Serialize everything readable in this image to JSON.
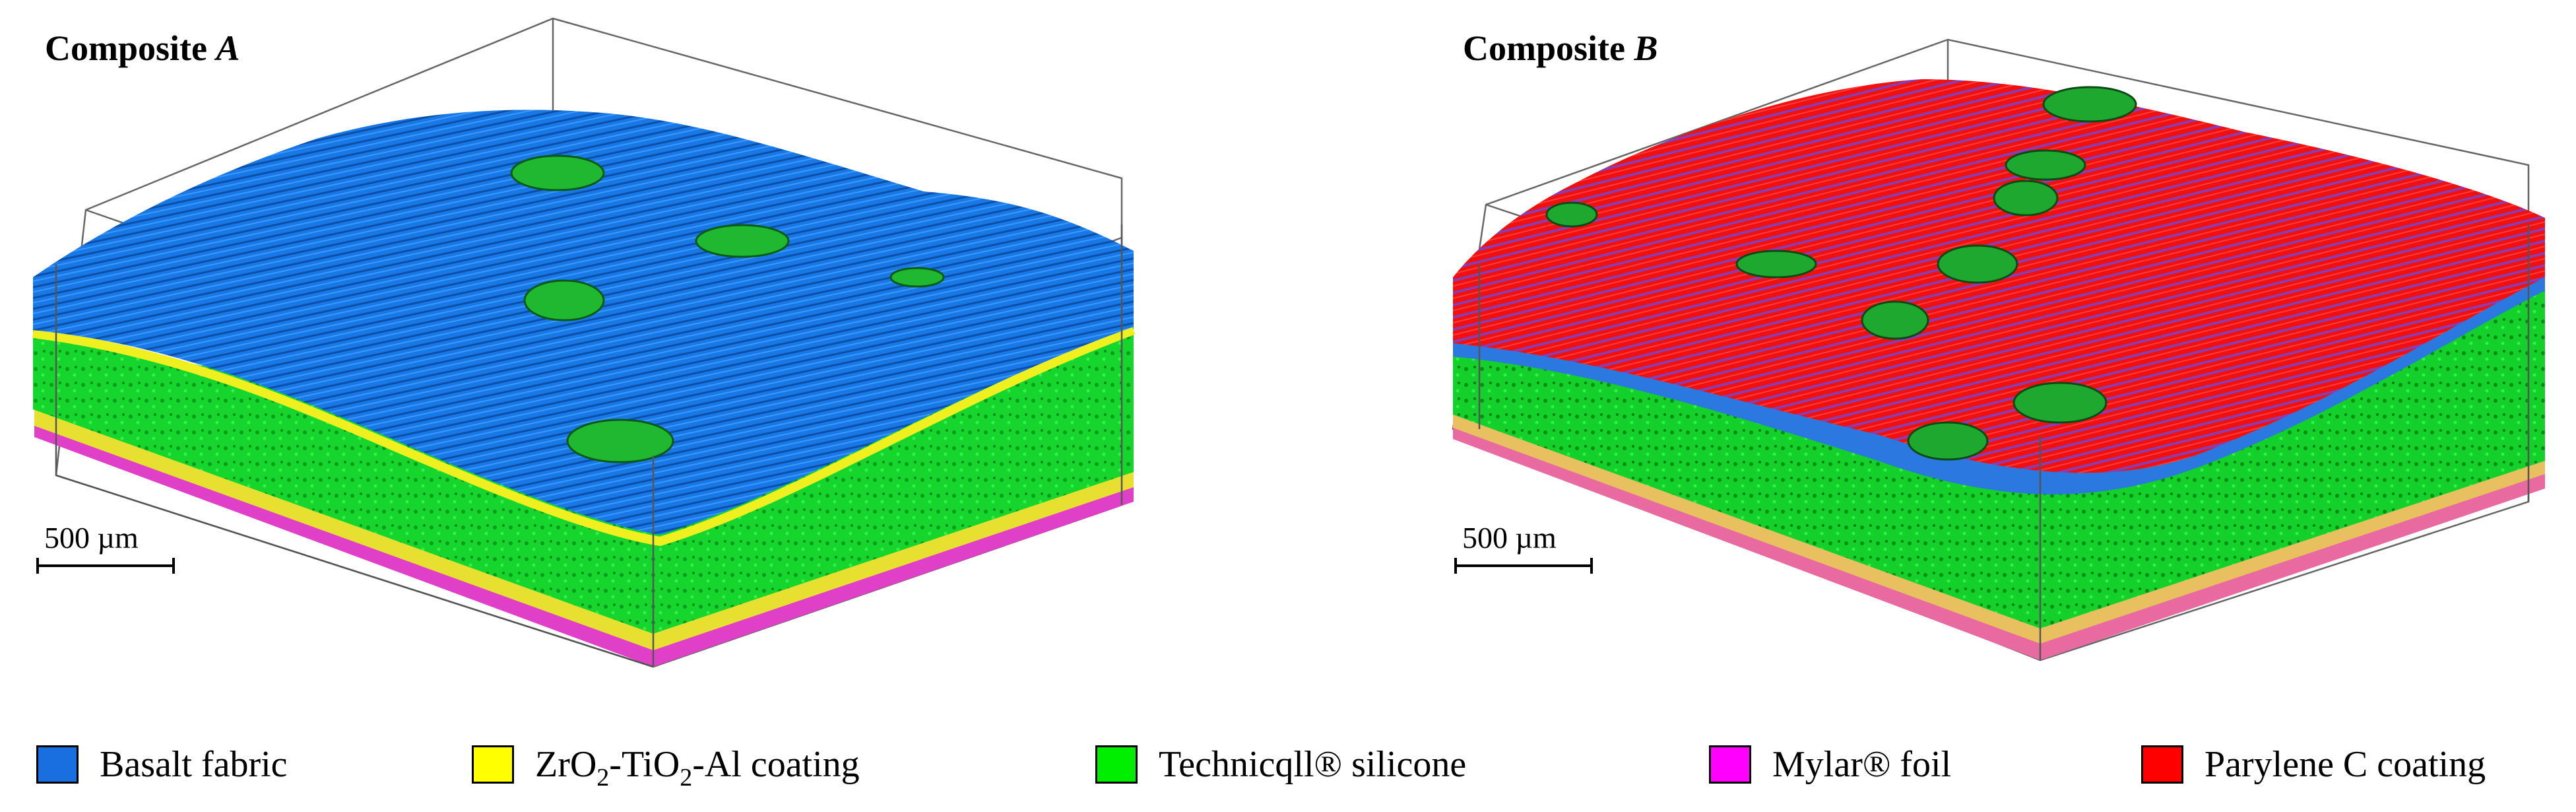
{
  "panels": [
    {
      "title": "Composite",
      "title_letter": "A",
      "scale_label": "500 µm",
      "materials_visible": [
        "Basalt fabric",
        "ZrO2-TiO2-Al coating",
        "Technicqll® silicone",
        "Mylar® foil"
      ]
    },
    {
      "title": "Composite",
      "title_letter": "B",
      "scale_label": "500 µm",
      "materials_visible": [
        "Parylene C coating",
        "Basalt fabric",
        "Technicqll® silicone",
        "Mylar® foil"
      ]
    }
  ],
  "legend": [
    {
      "key": "basalt",
      "label": "Basalt fabric",
      "color": "#1a6fe0"
    },
    {
      "key": "zro2",
      "label_parts": [
        "ZrO",
        "2",
        "-TiO",
        "2",
        "-Al coating"
      ],
      "color": "#ffff00"
    },
    {
      "key": "silicone",
      "label": "Technicqll® silicone",
      "color": "#00ee00"
    },
    {
      "key": "mylar",
      "label": "Mylar® foil",
      "color": "#ff00ff"
    },
    {
      "key": "parylene",
      "label": "Parylene C coating",
      "color": "#ff0000"
    }
  ]
}
